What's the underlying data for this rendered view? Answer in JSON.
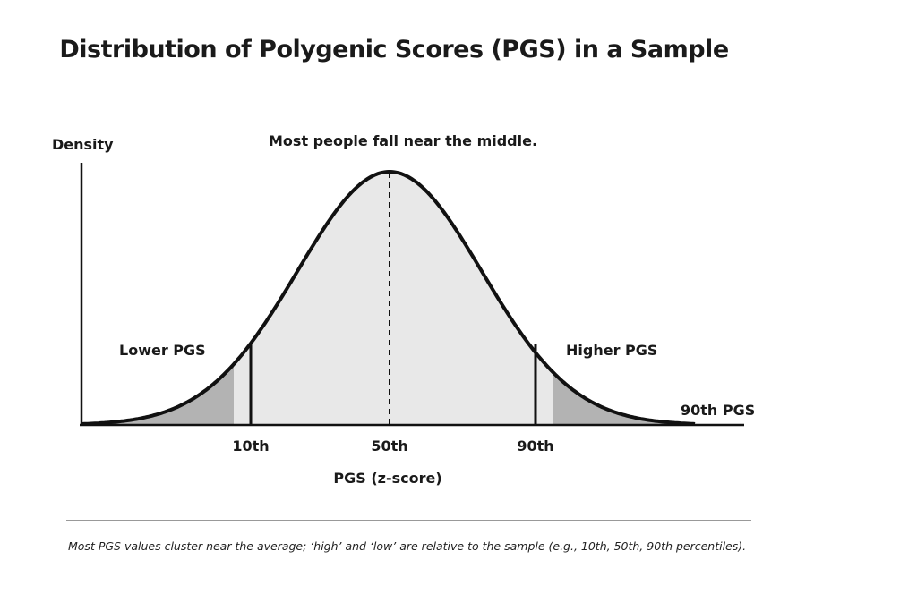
{
  "title": "Distribution of Polygenic Scores (PGS) in a Sample",
  "chart_data": {
    "type": "area",
    "title": "Distribution of Polygenic Scores (PGS) in a Sample",
    "ylabel": "Density",
    "xlabel": "PGS (z-score)",
    "annotation_top": "Most people fall near the middle.",
    "annotation_left": "Lower PGS",
    "annotation_right": "Higher PGS",
    "annotation_tail": "90th PGS",
    "distribution": "normal",
    "markers": [
      {
        "label": "10th",
        "percentile": 10
      },
      {
        "label": "50th",
        "percentile": 50,
        "style": "dashed"
      },
      {
        "label": "90th",
        "percentile": 90
      }
    ],
    "colors": {
      "curve": "#111111",
      "body_fill": "#e8e8e8",
      "tail_fill": "#b3b3b3"
    }
  },
  "caption": "Most PGS values cluster near the average; ‘high’ and ‘low’ are relative to the sample (e.g., 10th, 50th, 90th percentiles)."
}
